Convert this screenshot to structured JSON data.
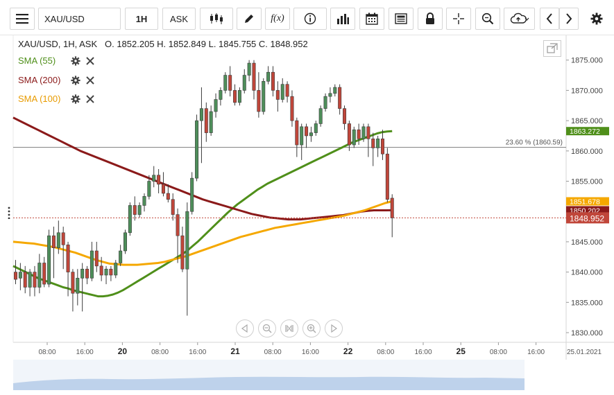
{
  "toolbar": {
    "symbol": "XAU/USD",
    "interval": "1H",
    "price_side": "ASK",
    "buttons": [
      "menu-icon",
      "candles-icon",
      "draw-icon",
      "function-icon",
      "info-icon",
      "volume-bars-icon",
      "calendar-icon",
      "news-icon",
      "lock-icon",
      "crosshair-icon",
      "zoom-icon",
      "cloud-upload-icon",
      "chevron-left-icon",
      "chevron-right-icon",
      "gear-icon"
    ],
    "function_label": "f(x)"
  },
  "legend": {
    "ohlc": "XAU/USD, 1H, ASK   O. 1852.205 H. 1852.849 L. 1845.755 C. 1848.952",
    "indicators": [
      {
        "name": "SMA (55)",
        "color": "#4f8f1a"
      },
      {
        "name": "SMA (200)",
        "color": "#8b1a1a"
      },
      {
        "name": "SMA (100)",
        "color": "#f5a800"
      }
    ]
  },
  "colors": {
    "bull": "#4e8e5a",
    "bear": "#c0463a",
    "last_price": "#c0463a"
  },
  "chart_data": {
    "type": "line",
    "title": "",
    "y_axis_ticks": [
      1830,
      1835,
      1840,
      1845,
      1850,
      1855,
      1860,
      1865,
      1870,
      1875
    ],
    "y_tick_labels": [
      "1830.000",
      "1835.000",
      "1840.000",
      "1845.000",
      "1850.000",
      "1855.000",
      "1860.000",
      "1865.000",
      "1870.000",
      "1875.000"
    ],
    "ylim": [
      1828.4,
      1879.2
    ],
    "x_ticks": [
      {
        "label": "08:00",
        "bold": false
      },
      {
        "label": "16:00",
        "bold": false
      },
      {
        "label": "20",
        "bold": true
      },
      {
        "label": "08:00",
        "bold": false
      },
      {
        "label": "16:00",
        "bold": false
      },
      {
        "label": "21",
        "bold": true
      },
      {
        "label": "08:00",
        "bold": false
      },
      {
        "label": "16:00",
        "bold": false
      },
      {
        "label": "22",
        "bold": true
      },
      {
        "label": "08:00",
        "bold": false
      },
      {
        "label": "16:00",
        "bold": false
      },
      {
        "label": "25",
        "bold": true
      },
      {
        "label": "08:00",
        "bold": false
      },
      {
        "label": "16:00",
        "bold": false
      },
      {
        "label": "25.01.2021",
        "bold": false
      }
    ],
    "fib_level": {
      "label": "23.60 % (1860.59)",
      "value": 1860.59
    },
    "last_price": {
      "label": "1848.952",
      "value": 1848.952
    },
    "price_labels": [
      {
        "label": "1863.272",
        "value": 1863.272,
        "color": "#4f8f1a"
      },
      {
        "label": "1851.678",
        "value": 1851.678,
        "color": "#f5a800"
      },
      {
        "label": "1850.202",
        "value": 1850.202,
        "color": "#8b1a1a"
      }
    ],
    "candles": [
      {
        "o": 1840.0,
        "h": 1842.0,
        "c": 1838.8,
        "l": 1838.0
      },
      {
        "o": 1839.0,
        "h": 1841.5,
        "c": 1840.0,
        "l": 1837.0
      },
      {
        "o": 1840.0,
        "h": 1841.0,
        "c": 1837.5,
        "l": 1836.5
      },
      {
        "o": 1837.5,
        "h": 1840.5,
        "c": 1840.0,
        "l": 1836.0
      },
      {
        "o": 1840.0,
        "h": 1841.0,
        "c": 1837.5,
        "l": 1836.0
      },
      {
        "o": 1837.5,
        "h": 1843.0,
        "c": 1841.5,
        "l": 1836.5
      },
      {
        "o": 1841.5,
        "h": 1842.5,
        "c": 1838.0,
        "l": 1837.5
      },
      {
        "o": 1838.0,
        "h": 1847.0,
        "c": 1846.0,
        "l": 1837.5
      },
      {
        "o": 1846.0,
        "h": 1847.5,
        "c": 1844.0,
        "l": 1839.0
      },
      {
        "o": 1844.0,
        "h": 1848.5,
        "c": 1846.5,
        "l": 1843.0
      },
      {
        "o": 1846.5,
        "h": 1847.5,
        "c": 1844.5,
        "l": 1840.5
      },
      {
        "o": 1844.5,
        "h": 1845.0,
        "c": 1840.0,
        "l": 1836.0
      },
      {
        "o": 1840.0,
        "h": 1840.5,
        "c": 1836.5,
        "l": 1833.5
      },
      {
        "o": 1836.5,
        "h": 1840.5,
        "c": 1839.0,
        "l": 1834.5
      },
      {
        "o": 1839.0,
        "h": 1841.5,
        "c": 1840.5,
        "l": 1833.5
      },
      {
        "o": 1840.5,
        "h": 1841.0,
        "c": 1839.0,
        "l": 1838.0
      },
      {
        "o": 1839.0,
        "h": 1845.0,
        "c": 1843.5,
        "l": 1838.5
      },
      {
        "o": 1843.5,
        "h": 1845.0,
        "c": 1841.0,
        "l": 1840.0
      },
      {
        "o": 1841.0,
        "h": 1842.5,
        "c": 1839.5,
        "l": 1838.5
      },
      {
        "o": 1839.5,
        "h": 1841.0,
        "c": 1840.5,
        "l": 1838.0
      },
      {
        "o": 1840.5,
        "h": 1841.0,
        "c": 1839.5,
        "l": 1838.5
      },
      {
        "o": 1839.5,
        "h": 1842.0,
        "c": 1841.5,
        "l": 1839.0
      },
      {
        "o": 1841.5,
        "h": 1844.5,
        "c": 1843.5,
        "l": 1841.0
      },
      {
        "o": 1843.5,
        "h": 1847.0,
        "c": 1846.5,
        "l": 1843.0
      },
      {
        "o": 1846.5,
        "h": 1851.5,
        "c": 1851.0,
        "l": 1846.0
      },
      {
        "o": 1851.0,
        "h": 1852.5,
        "c": 1849.5,
        "l": 1848.5
      },
      {
        "o": 1849.5,
        "h": 1851.5,
        "c": 1851.0,
        "l": 1849.0
      },
      {
        "o": 1851.0,
        "h": 1853.0,
        "c": 1852.5,
        "l": 1850.0
      },
      {
        "o": 1852.5,
        "h": 1856.0,
        "c": 1855.0,
        "l": 1852.0
      },
      {
        "o": 1855.0,
        "h": 1857.5,
        "c": 1856.0,
        "l": 1854.0
      },
      {
        "o": 1856.0,
        "h": 1857.0,
        "c": 1854.5,
        "l": 1853.0
      },
      {
        "o": 1854.5,
        "h": 1856.5,
        "c": 1853.0,
        "l": 1852.5
      },
      {
        "o": 1853.0,
        "h": 1854.5,
        "c": 1852.0,
        "l": 1851.5
      },
      {
        "o": 1852.0,
        "h": 1853.0,
        "c": 1849.5,
        "l": 1848.5
      },
      {
        "o": 1849.5,
        "h": 1850.5,
        "c": 1846.0,
        "l": 1841.5
      },
      {
        "o": 1846.0,
        "h": 1847.5,
        "c": 1840.5,
        "l": 1840.0
      },
      {
        "o": 1840.5,
        "h": 1851.5,
        "c": 1850.0,
        "l": 1832.8
      },
      {
        "o": 1850.0,
        "h": 1856.5,
        "c": 1855.5,
        "l": 1849.5
      },
      {
        "o": 1855.5,
        "h": 1866.0,
        "c": 1865.0,
        "l": 1855.0
      },
      {
        "o": 1865.0,
        "h": 1870.5,
        "c": 1867.0,
        "l": 1858.0
      },
      {
        "o": 1867.0,
        "h": 1868.0,
        "c": 1863.0,
        "l": 1861.5
      },
      {
        "o": 1863.0,
        "h": 1867.5,
        "c": 1866.5,
        "l": 1862.5
      },
      {
        "o": 1866.5,
        "h": 1869.5,
        "c": 1868.5,
        "l": 1865.5
      },
      {
        "o": 1868.5,
        "h": 1870.5,
        "c": 1870.0,
        "l": 1867.5
      },
      {
        "o": 1870.0,
        "h": 1873.0,
        "c": 1872.5,
        "l": 1869.5
      },
      {
        "o": 1872.5,
        "h": 1874.0,
        "c": 1870.0,
        "l": 1869.0
      },
      {
        "o": 1870.0,
        "h": 1871.0,
        "c": 1868.0,
        "l": 1867.5
      },
      {
        "o": 1868.0,
        "h": 1870.5,
        "c": 1870.0,
        "l": 1867.5
      },
      {
        "o": 1870.0,
        "h": 1873.5,
        "c": 1872.5,
        "l": 1869.5
      },
      {
        "o": 1872.5,
        "h": 1875.0,
        "c": 1874.5,
        "l": 1871.5
      },
      {
        "o": 1874.5,
        "h": 1875.0,
        "c": 1870.0,
        "l": 1868.5
      },
      {
        "o": 1870.0,
        "h": 1873.0,
        "c": 1866.5,
        "l": 1865.5
      },
      {
        "o": 1866.5,
        "h": 1872.0,
        "c": 1871.5,
        "l": 1866.0
      },
      {
        "o": 1871.5,
        "h": 1874.0,
        "c": 1873.0,
        "l": 1871.0
      },
      {
        "o": 1873.0,
        "h": 1874.0,
        "c": 1870.0,
        "l": 1869.0
      },
      {
        "o": 1870.0,
        "h": 1871.5,
        "c": 1868.5,
        "l": 1866.5
      },
      {
        "o": 1868.5,
        "h": 1872.0,
        "c": 1871.0,
        "l": 1868.0
      },
      {
        "o": 1871.0,
        "h": 1871.5,
        "c": 1869.0,
        "l": 1868.0
      },
      {
        "o": 1869.0,
        "h": 1870.0,
        "c": 1865.0,
        "l": 1864.0
      },
      {
        "o": 1865.0,
        "h": 1865.5,
        "c": 1861.0,
        "l": 1859.0
      },
      {
        "o": 1861.0,
        "h": 1864.5,
        "c": 1864.0,
        "l": 1858.5
      },
      {
        "o": 1864.0,
        "h": 1864.5,
        "c": 1862.5,
        "l": 1860.5
      },
      {
        "o": 1862.5,
        "h": 1864.0,
        "c": 1863.0,
        "l": 1861.5
      },
      {
        "o": 1863.0,
        "h": 1865.0,
        "c": 1864.5,
        "l": 1862.5
      },
      {
        "o": 1864.5,
        "h": 1867.5,
        "c": 1867.0,
        "l": 1864.0
      },
      {
        "o": 1867.0,
        "h": 1869.5,
        "c": 1869.0,
        "l": 1866.5
      },
      {
        "o": 1869.0,
        "h": 1870.5,
        "c": 1869.5,
        "l": 1868.0
      },
      {
        "o": 1869.5,
        "h": 1871.0,
        "c": 1870.5,
        "l": 1869.0
      },
      {
        "o": 1870.5,
        "h": 1871.0,
        "c": 1867.0,
        "l": 1866.0
      },
      {
        "o": 1867.0,
        "h": 1867.5,
        "c": 1864.5,
        "l": 1863.5
      },
      {
        "o": 1864.5,
        "h": 1865.0,
        "c": 1861.0,
        "l": 1860.0
      },
      {
        "o": 1861.0,
        "h": 1864.0,
        "c": 1863.5,
        "l": 1860.5
      },
      {
        "o": 1863.5,
        "h": 1864.5,
        "c": 1862.0,
        "l": 1861.0
      },
      {
        "o": 1862.0,
        "h": 1864.5,
        "c": 1864.0,
        "l": 1861.5
      },
      {
        "o": 1864.0,
        "h": 1864.5,
        "c": 1862.0,
        "l": 1859.0
      },
      {
        "o": 1862.0,
        "h": 1863.0,
        "c": 1860.5,
        "l": 1857.5
      },
      {
        "o": 1860.5,
        "h": 1862.5,
        "c": 1862.0,
        "l": 1859.0
      },
      {
        "o": 1862.0,
        "h": 1863.5,
        "c": 1859.5,
        "l": 1858.5
      },
      {
        "o": 1859.5,
        "h": 1860.5,
        "c": 1852.0,
        "l": 1851.5
      },
      {
        "o": 1852.205,
        "h": 1852.849,
        "c": 1848.952,
        "l": 1845.755
      }
    ],
    "series": [
      {
        "name": "SMA (55)",
        "color": "#4f8f1a",
        "values": [
          1841.0,
          1840.6,
          1840.2,
          1839.8,
          1839.4,
          1839.0,
          1838.7,
          1838.4,
          1838.1,
          1837.8,
          1837.5,
          1837.3,
          1837.0,
          1836.8,
          1836.6,
          1836.4,
          1836.2,
          1836.0,
          1836.0,
          1836.1,
          1836.3,
          1836.6,
          1837.0,
          1837.5,
          1838.0,
          1838.5,
          1839.0,
          1839.5,
          1840.0,
          1840.5,
          1841.0,
          1841.5,
          1842.0,
          1842.5,
          1843.0,
          1843.6,
          1844.3,
          1845.0,
          1845.8,
          1846.6,
          1847.4,
          1848.2,
          1849.0,
          1849.8,
          1850.5,
          1851.2,
          1851.8,
          1852.4,
          1853.0,
          1853.6,
          1854.1,
          1854.6,
          1855.0,
          1855.4,
          1855.8,
          1856.2,
          1856.6,
          1857.0,
          1857.4,
          1857.8,
          1858.2,
          1858.6,
          1859.0,
          1859.4,
          1859.8,
          1860.2,
          1860.6,
          1861.0,
          1861.4,
          1861.7,
          1862.0,
          1862.3,
          1862.6,
          1862.9,
          1863.1,
          1863.2,
          1863.272
        ]
      },
      {
        "name": "SMA (200)",
        "color": "#8b1a1a",
        "values": [
          1865.5,
          1865.0,
          1864.5,
          1864.0,
          1863.5,
          1863.0,
          1862.5,
          1862.0,
          1861.5,
          1861.0,
          1860.5,
          1860.0,
          1859.6,
          1859.2,
          1858.8,
          1858.4,
          1858.0,
          1857.6,
          1857.2,
          1856.8,
          1856.4,
          1856.0,
          1855.6,
          1855.2,
          1854.8,
          1854.4,
          1854.0,
          1853.6,
          1853.2,
          1852.8,
          1852.4,
          1852.0,
          1851.7,
          1851.4,
          1851.1,
          1850.8,
          1850.5,
          1850.2,
          1849.9,
          1849.6,
          1849.4,
          1849.2,
          1849.0,
          1848.9,
          1848.8,
          1848.7,
          1848.7,
          1848.7,
          1848.8,
          1848.9,
          1849.0,
          1849.1,
          1849.2,
          1849.3,
          1849.4,
          1849.6,
          1849.8,
          1850.0,
          1850.1,
          1850.2,
          1850.2,
          1850.2,
          1850.202
        ]
      },
      {
        "name": "SMA (100)",
        "color": "#f5a800",
        "values": [
          1845.0,
          1844.9,
          1844.8,
          1844.7,
          1844.5,
          1844.3,
          1844.1,
          1843.8,
          1843.5,
          1843.2,
          1842.8,
          1842.4,
          1842.0,
          1841.7,
          1841.4,
          1841.3,
          1841.2,
          1841.2,
          1841.2,
          1841.3,
          1841.4,
          1841.5,
          1841.7,
          1842.0,
          1842.3,
          1842.6,
          1843.0,
          1843.4,
          1843.8,
          1844.2,
          1844.6,
          1845.0,
          1845.4,
          1845.8,
          1846.1,
          1846.4,
          1846.7,
          1847.0,
          1847.3,
          1847.5,
          1847.7,
          1847.9,
          1848.1,
          1848.3,
          1848.5,
          1848.7,
          1848.9,
          1849.1,
          1849.3,
          1849.6,
          1849.9,
          1850.2,
          1850.6,
          1851.0,
          1851.4,
          1851.678
        ]
      }
    ]
  }
}
